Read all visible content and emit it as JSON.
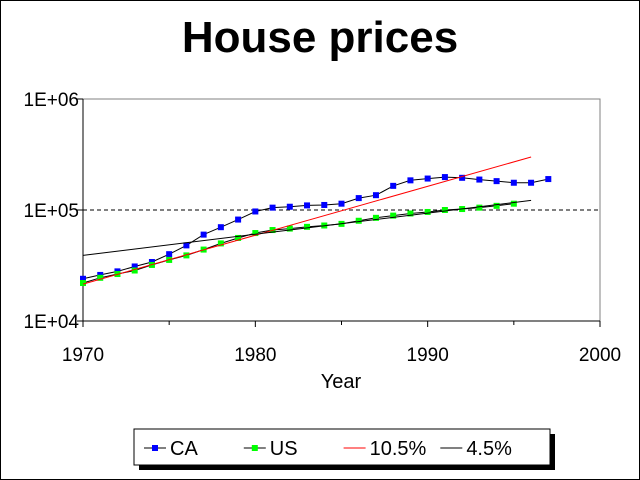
{
  "chart_data": {
    "type": "line",
    "title": "House prices",
    "xlabel": "Year",
    "ylabel": "",
    "yscale": "log",
    "xlim": [
      1970,
      2000
    ],
    "ylim": [
      10000,
      1000000
    ],
    "x_ticks": [
      1970,
      1980,
      1990,
      2000
    ],
    "x_tick_labels": [
      "1970",
      "1980",
      "1990",
      "2000"
    ],
    "y_ticks": [
      10000,
      100000,
      1000000
    ],
    "y_tick_labels": [
      "1E+04",
      "1E+05",
      "1E+06"
    ],
    "reference_line": {
      "y": 100000,
      "style": "dashed"
    },
    "legend_position": "bottom",
    "series": [
      {
        "name": "CA",
        "color": "#0000FF",
        "marker": "square",
        "x": [
          1970,
          1971,
          1972,
          1973,
          1974,
          1975,
          1976,
          1977,
          1978,
          1979,
          1980,
          1981,
          1982,
          1983,
          1984,
          1985,
          1986,
          1987,
          1988,
          1989,
          1990,
          1991,
          1992,
          1993,
          1994,
          1995,
          1996,
          1997
        ],
        "values": [
          24000,
          26000,
          28000,
          31000,
          34000,
          40000,
          48000,
          60000,
          70000,
          82000,
          97000,
          105000,
          107000,
          110000,
          111000,
          114000,
          128000,
          136000,
          165000,
          185000,
          192000,
          198000,
          195000,
          188000,
          182000,
          176000,
          176000,
          190000
        ]
      },
      {
        "name": "US",
        "color": "#00FF00",
        "marker": "square",
        "x": [
          1970,
          1971,
          1972,
          1973,
          1974,
          1975,
          1976,
          1977,
          1978,
          1979,
          1980,
          1981,
          1982,
          1983,
          1984,
          1985,
          1986,
          1987,
          1988,
          1989,
          1990,
          1991,
          1992,
          1993,
          1994,
          1995
        ],
        "values": [
          22000,
          24500,
          26500,
          28500,
          32000,
          35500,
          39000,
          44000,
          50000,
          56000,
          62000,
          66000,
          68000,
          70500,
          72500,
          75000,
          80000,
          85000,
          89000,
          93000,
          96000,
          100000,
          102000,
          105000,
          109000,
          114000
        ]
      },
      {
        "name": "10.5%",
        "color": "#FF0000",
        "marker": "none",
        "x": [
          1970,
          1996
        ],
        "values": [
          21500,
          300000
        ]
      },
      {
        "name": "4.5%",
        "color": "#000000",
        "marker": "none",
        "x": [
          1970,
          1996
        ],
        "values": [
          39000,
          122000
        ]
      }
    ]
  }
}
